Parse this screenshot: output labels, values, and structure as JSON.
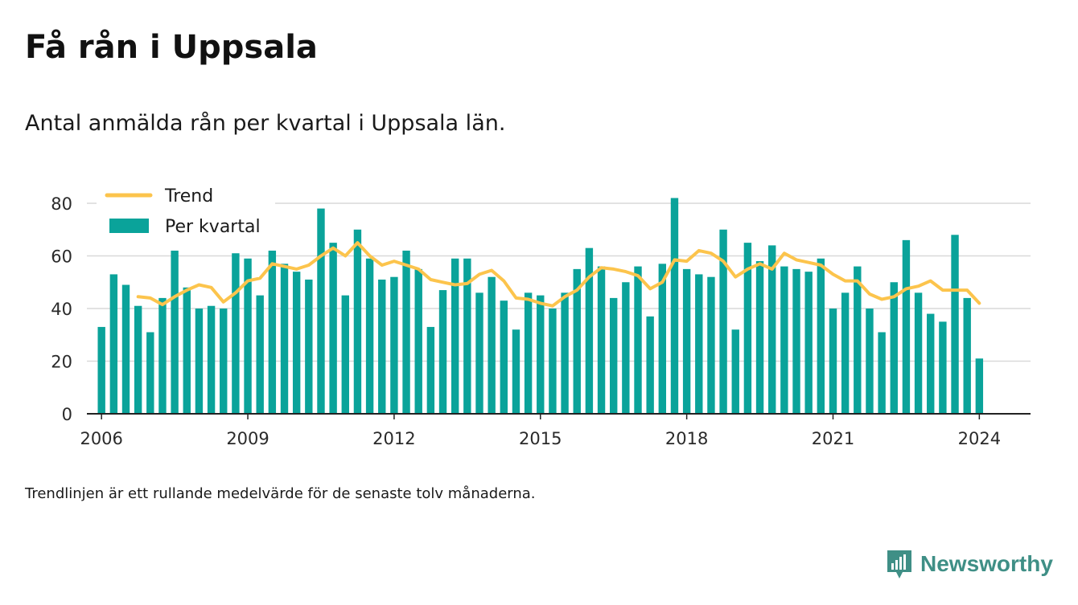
{
  "header": {
    "title": "Få rån i Uppsala",
    "subtitle": "Antal anmälda rån per kvartal i Uppsala län."
  },
  "footer": {
    "note": "Trendlinjen är ett rullande medelvärde för de senaste tolv månaderna.",
    "brand": "Newsworthy"
  },
  "colors": {
    "bar": "#0aa39a",
    "trend": "#fcc44c",
    "grid": "#d9d9d9",
    "brand": "#3f8f86"
  },
  "chart_data": {
    "type": "bar",
    "title": "Få rån i Uppsala",
    "subtitle": "Antal anmälda rån per kvartal i Uppsala län.",
    "x_ticks": [
      "2006",
      "2009",
      "2012",
      "2015",
      "2018",
      "2021",
      "2024"
    ],
    "y_ticks": [
      0,
      20,
      40,
      60,
      80
    ],
    "ylim": [
      0,
      85
    ],
    "xlim": [
      2005.7,
      2025.05
    ],
    "grid": "horizontal",
    "legend_position": "top-left",
    "x_start": 2006,
    "x_step": 0.25,
    "series": [
      {
        "name": "Per kvartal",
        "type": "bar",
        "values": [
          33,
          53,
          49,
          41,
          31,
          44,
          62,
          48,
          40,
          41,
          40,
          61,
          59,
          45,
          62,
          57,
          54,
          51,
          78,
          65,
          45,
          70,
          59,
          51,
          52,
          62,
          55,
          33,
          47,
          59,
          59,
          46,
          52,
          43,
          32,
          46,
          45,
          40,
          46,
          55,
          63,
          56,
          44,
          50,
          56,
          37,
          57,
          82,
          55,
          53,
          52,
          70,
          32,
          65,
          58,
          64,
          56,
          55,
          54,
          59,
          40,
          46,
          56,
          40,
          31,
          50,
          66,
          46,
          38,
          35,
          68,
          44,
          21
        ]
      },
      {
        "name": "Trend",
        "type": "line",
        "values": [
          null,
          null,
          null,
          44.5,
          44,
          41.5,
          44.5,
          47,
          49,
          48,
          42.5,
          46,
          50.5,
          51.5,
          57,
          56,
          55,
          56.5,
          60,
          63,
          60,
          65,
          60,
          56.5,
          58,
          56.5,
          55,
          51,
          50,
          49,
          49.5,
          53,
          54.5,
          50.5,
          44,
          43.5,
          42,
          41,
          44.5,
          47,
          52,
          55.5,
          55,
          54,
          52.5,
          47.5,
          50,
          58.5,
          58,
          62,
          61,
          58,
          52,
          55,
          57,
          55,
          61,
          58.5,
          57.5,
          56.5,
          53,
          50.5,
          50.5,
          45.5,
          43.5,
          44.5,
          47.5,
          48.5,
          50.5,
          47,
          47,
          47,
          42
        ]
      }
    ]
  }
}
